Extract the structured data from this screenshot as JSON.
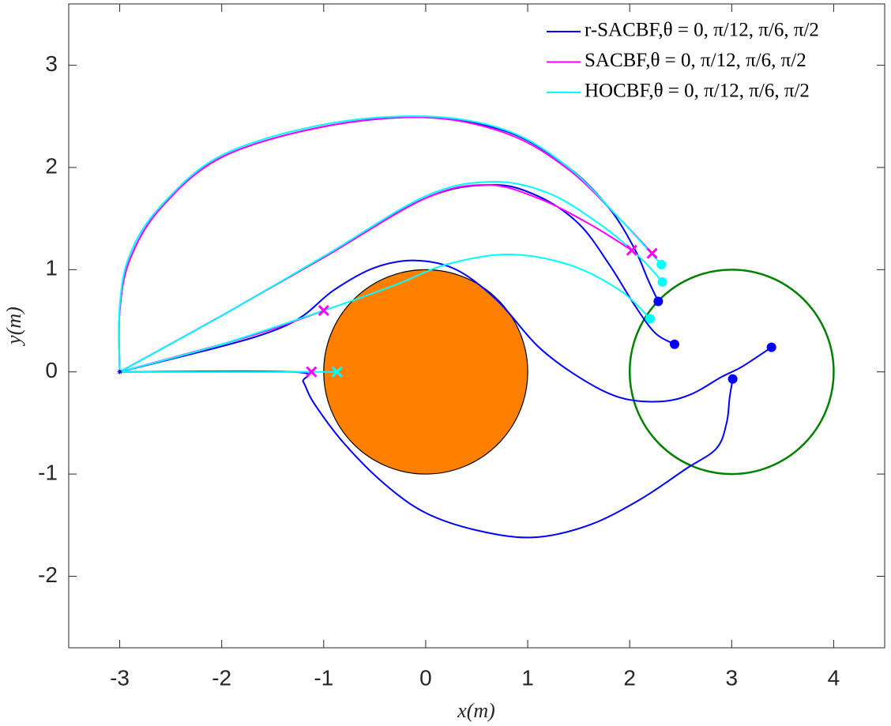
{
  "chart_data": {
    "type": "trajectory",
    "x_label": "x(m)",
    "y_label": "y(m)",
    "xlim": [
      -3.5,
      4.5
    ],
    "ylim": [
      -2.7,
      3.6
    ],
    "xticks": [
      -3,
      -2,
      -1,
      0,
      1,
      2,
      3,
      4
    ],
    "yticks": [
      -2,
      -1,
      0,
      1,
      2,
      3
    ],
    "grid": false,
    "legend": "top-right",
    "start": {
      "x": -3,
      "y": 0,
      "color": "#0000ff"
    },
    "obstacle": {
      "center": [
        0,
        0
      ],
      "radius": 1,
      "color": "#ff8000"
    },
    "goal": {
      "center": [
        3,
        0
      ],
      "radius": 1,
      "color": "#008000"
    },
    "series": [
      {
        "name": "r-SACBF,θ = 0, π/12, π/6, π/2",
        "color": "#0000ff",
        "trajectories": [
          {
            "marker": "o",
            "x": [
              -3,
              -1.3,
              -1.2,
              -1.1,
              -0.8,
              -0.4,
              0,
              0.5,
              1.05,
              1.6,
              2.1,
              2.55,
              2.85,
              2.95,
              2.98,
              3.01
            ],
            "y": [
              0,
              0,
              -0.1,
              -0.3,
              -0.7,
              -1.1,
              -1.38,
              -1.55,
              -1.62,
              -1.5,
              -1.25,
              -0.95,
              -0.75,
              -0.5,
              -0.25,
              -0.07
            ]
          },
          {
            "marker": "o",
            "x": [
              -3,
              -2,
              -1.5,
              -1.2,
              -0.9,
              -0.5,
              -0.1,
              0.3,
              0.7,
              1.1,
              1.5,
              1.9,
              2.3,
              2.6,
              2.9,
              3.1,
              3.39
            ],
            "y": [
              0,
              0.25,
              0.4,
              0.55,
              0.8,
              1.02,
              1.09,
              1.0,
              0.7,
              0.25,
              -0.05,
              -0.25,
              -0.29,
              -0.22,
              -0.05,
              0.05,
              0.24
            ]
          },
          {
            "marker": "o",
            "x": [
              -3,
              -2,
              -1,
              0,
              0.65,
              1.1,
              1.5,
              1.8,
              2.05,
              2.25,
              2.44
            ],
            "y": [
              0,
              0.55,
              1.12,
              1.7,
              1.83,
              1.72,
              1.45,
              1.05,
              0.65,
              0.38,
              0.27
            ]
          },
          {
            "marker": "o",
            "x": [
              -3,
              -3,
              -2.9,
              -2.6,
              -2,
              -1,
              0,
              0.8,
              1.4,
              1.8,
              2.05,
              2.18,
              2.28
            ],
            "y": [
              0,
              0.6,
              1.1,
              1.6,
              2.1,
              2.4,
              2.49,
              2.35,
              2.0,
              1.6,
              1.2,
              0.9,
              0.69
            ]
          }
        ]
      },
      {
        "name": "SACBF,θ = 0, π/12, π/6, π/2",
        "color": "#ff00ff",
        "trajectories": [
          {
            "marker": "x",
            "x": [
              -3,
              -1.12
            ],
            "y": [
              0,
              0
            ]
          },
          {
            "marker": "x",
            "x": [
              -3,
              -2,
              -1.5,
              -1.0
            ],
            "y": [
              0,
              0.27,
              0.42,
              0.6
            ]
          },
          {
            "marker": "x",
            "x": [
              -3,
              -2,
              -1,
              0,
              0.6,
              1.1,
              1.6,
              2.02
            ],
            "y": [
              0,
              0.55,
              1.12,
              1.7,
              1.83,
              1.7,
              1.45,
              1.19
            ]
          },
          {
            "marker": "x",
            "x": [
              -3,
              -3,
              -2.9,
              -2.6,
              -2,
              -1,
              0,
              0.8,
              1.4,
              1.9,
              2.22
            ],
            "y": [
              0,
              0.6,
              1.1,
              1.6,
              2.1,
              2.4,
              2.49,
              2.33,
              1.98,
              1.5,
              1.16
            ]
          }
        ]
      },
      {
        "name": "HOCBF,θ = 0, π/12, π/6, π/2",
        "color": "#00ffff",
        "trajectories": [
          {
            "marker": "x",
            "x": [
              -3,
              -0.87
            ],
            "y": [
              0,
              0
            ]
          },
          {
            "marker": "o",
            "x": [
              -3,
              -2,
              -1,
              -0.3,
              0.2,
              0.8,
              1.4,
              1.9,
              2.2
            ],
            "y": [
              0,
              0.27,
              0.6,
              0.85,
              1.05,
              1.15,
              1.05,
              0.8,
              0.52
            ]
          },
          {
            "marker": "o",
            "x": [
              -3,
              -2,
              -1,
              0,
              0.65,
              1.2,
              1.7,
              2.1,
              2.32
            ],
            "y": [
              0,
              0.55,
              1.13,
              1.72,
              1.86,
              1.75,
              1.45,
              1.12,
              0.88
            ]
          },
          {
            "marker": "o",
            "x": [
              -3,
              -3,
              -2.9,
              -2.6,
              -2,
              -1,
              0,
              0.8,
              1.4,
              1.9,
              2.31
            ],
            "y": [
              0,
              0.65,
              1.15,
              1.62,
              2.12,
              2.42,
              2.5,
              2.36,
              2.0,
              1.5,
              1.05
            ]
          }
        ]
      }
    ]
  }
}
